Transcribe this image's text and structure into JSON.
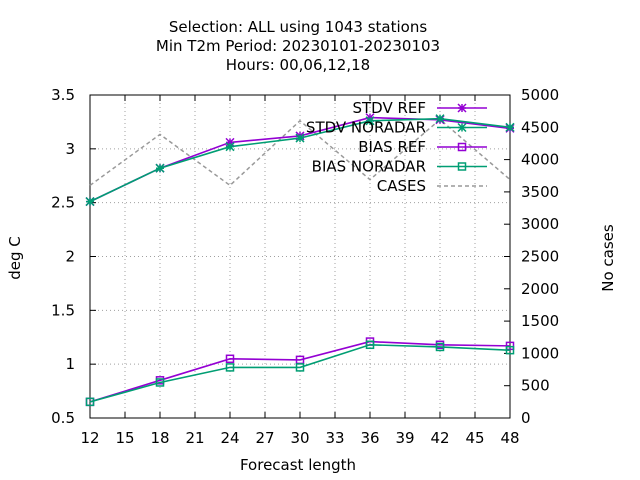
{
  "chart_data": {
    "type": "line",
    "title_lines": [
      "Selection: ALL using  1043 stations",
      "Min T2m   Period: 20230101-20230103",
      "Hours:  00,06,12,18"
    ],
    "xlabel": "Forecast length",
    "ylabel": "deg C",
    "y2label": "No cases",
    "xlim": [
      12,
      48
    ],
    "xticks": [
      12,
      15,
      18,
      21,
      24,
      27,
      30,
      33,
      36,
      39,
      42,
      45,
      48
    ],
    "ylim": [
      0.5,
      3.5
    ],
    "yticks": [
      0.5,
      1,
      1.5,
      2,
      2.5,
      3,
      3.5
    ],
    "ytick_labels": [
      "0.5",
      "1",
      "1.5",
      "2",
      "2.5",
      "3",
      "3.5"
    ],
    "y2lim": [
      0,
      5000
    ],
    "y2ticks": [
      0,
      500,
      1000,
      1500,
      2000,
      2500,
      3000,
      3500,
      4000,
      4500,
      5000
    ],
    "grid": true,
    "legend_position": "top-right",
    "x": [
      12,
      18,
      24,
      30,
      36,
      42,
      48
    ],
    "series": [
      {
        "name": "STDV REF",
        "axis": "left",
        "color": "#9400d3",
        "marker": "star",
        "dash": "solid",
        "values": [
          2.51,
          2.82,
          3.06,
          3.12,
          3.29,
          3.27,
          3.19
        ]
      },
      {
        "name": "STDV NORADAR",
        "axis": "left",
        "color": "#009e73",
        "marker": "star",
        "dash": "solid",
        "values": [
          2.51,
          2.82,
          3.02,
          3.1,
          3.26,
          3.28,
          3.2
        ]
      },
      {
        "name": "BIAS REF",
        "axis": "left",
        "color": "#9400d3",
        "marker": "square",
        "dash": "solid",
        "values": [
          0.65,
          0.85,
          1.05,
          1.04,
          1.21,
          1.18,
          1.17
        ]
      },
      {
        "name": "BIAS NORADAR",
        "axis": "left",
        "color": "#009e73",
        "marker": "square",
        "dash": "solid",
        "values": [
          0.65,
          0.83,
          0.97,
          0.97,
          1.18,
          1.16,
          1.13
        ]
      },
      {
        "name": "CASES",
        "axis": "right",
        "color": "#999999",
        "marker": "none",
        "dash": "dashed",
        "values": [
          3600,
          4390,
          3600,
          4600,
          3690,
          4620,
          3690
        ]
      }
    ]
  }
}
